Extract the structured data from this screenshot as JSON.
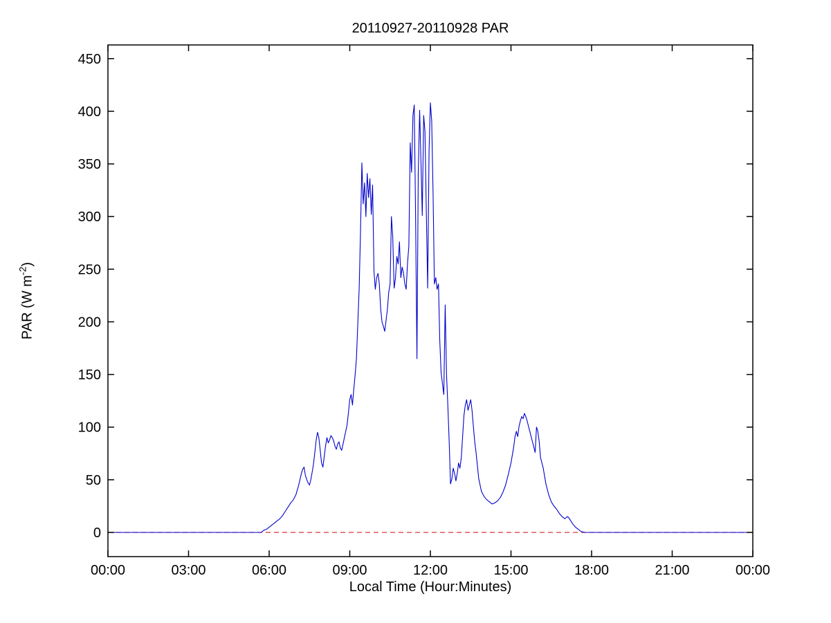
{
  "page": {
    "background": "#ffffff"
  },
  "chart_data": {
    "type": "line",
    "title": "20110927-20110928 PAR",
    "xlabel": "Local Time (Hour:Minutes)",
    "ylabel": "PAR (W m⁻²)",
    "ylabel_parts": {
      "prefix": "PAR (W m",
      "sup": "-2",
      "suffix": ")"
    },
    "xlim": [
      0,
      24
    ],
    "ylim": [
      -23,
      463
    ],
    "grid": false,
    "legend": "none",
    "axis_color": "#000000",
    "x_ticks": {
      "values": [
        0,
        3,
        6,
        9,
        12,
        15,
        18,
        21,
        24
      ],
      "labels": [
        "00:00",
        "03:00",
        "06:00",
        "09:00",
        "12:00",
        "15:00",
        "18:00",
        "21:00",
        "00:00"
      ]
    },
    "y_ticks": {
      "values": [
        0,
        50,
        100,
        150,
        200,
        250,
        300,
        350,
        400,
        450
      ],
      "labels": [
        "0",
        "50",
        "100",
        "150",
        "200",
        "250",
        "300",
        "350",
        "400",
        "450"
      ]
    },
    "series": [
      {
        "name": "PAR",
        "color": "#0000cc",
        "style": "solid",
        "points": [
          [
            0,
            0
          ],
          [
            1,
            0
          ],
          [
            2,
            0
          ],
          [
            3,
            0
          ],
          [
            4,
            0
          ],
          [
            5,
            0
          ],
          [
            5.5,
            0
          ],
          [
            5.7,
            0
          ],
          [
            5.8,
            2
          ],
          [
            5.9,
            3
          ],
          [
            6.0,
            5
          ],
          [
            6.1,
            7
          ],
          [
            6.2,
            9
          ],
          [
            6.3,
            11
          ],
          [
            6.4,
            13
          ],
          [
            6.5,
            16
          ],
          [
            6.6,
            20
          ],
          [
            6.7,
            24
          ],
          [
            6.8,
            28
          ],
          [
            6.9,
            31
          ],
          [
            7.0,
            36
          ],
          [
            7.1,
            45
          ],
          [
            7.2,
            56
          ],
          [
            7.25,
            60
          ],
          [
            7.3,
            62
          ],
          [
            7.35,
            54
          ],
          [
            7.4,
            50
          ],
          [
            7.45,
            47
          ],
          [
            7.5,
            45
          ],
          [
            7.55,
            50
          ],
          [
            7.6,
            57
          ],
          [
            7.65,
            65
          ],
          [
            7.7,
            76
          ],
          [
            7.75,
            88
          ],
          [
            7.8,
            95
          ],
          [
            7.85,
            90
          ],
          [
            7.9,
            78
          ],
          [
            7.95,
            66
          ],
          [
            8.0,
            62
          ],
          [
            8.05,
            72
          ],
          [
            8.1,
            82
          ],
          [
            8.15,
            90
          ],
          [
            8.2,
            85
          ],
          [
            8.25,
            88
          ],
          [
            8.3,
            92
          ],
          [
            8.35,
            90
          ],
          [
            8.4,
            87
          ],
          [
            8.45,
            82
          ],
          [
            8.5,
            79
          ],
          [
            8.55,
            84
          ],
          [
            8.6,
            86
          ],
          [
            8.65,
            80
          ],
          [
            8.7,
            78
          ],
          [
            8.75,
            84
          ],
          [
            8.8,
            90
          ],
          [
            8.85,
            96
          ],
          [
            8.9,
            102
          ],
          [
            8.95,
            114
          ],
          [
            9.0,
            126
          ],
          [
            9.05,
            131
          ],
          [
            9.1,
            121
          ],
          [
            9.15,
            136
          ],
          [
            9.2,
            150
          ],
          [
            9.25,
            166
          ],
          [
            9.3,
            200
          ],
          [
            9.35,
            232
          ],
          [
            9.4,
            285
          ],
          [
            9.45,
            351
          ],
          [
            9.5,
            312
          ],
          [
            9.55,
            332
          ],
          [
            9.6,
            300
          ],
          [
            9.65,
            341
          ],
          [
            9.7,
            318
          ],
          [
            9.75,
            336
          ],
          [
            9.8,
            302
          ],
          [
            9.85,
            330
          ],
          [
            9.9,
            248
          ],
          [
            9.95,
            231
          ],
          [
            10.0,
            242
          ],
          [
            10.05,
            246
          ],
          [
            10.1,
            236
          ],
          [
            10.15,
            212
          ],
          [
            10.2,
            200
          ],
          [
            10.25,
            196
          ],
          [
            10.3,
            191
          ],
          [
            10.35,
            201
          ],
          [
            10.4,
            212
          ],
          [
            10.45,
            228
          ],
          [
            10.5,
            236
          ],
          [
            10.55,
            300
          ],
          [
            10.6,
            281
          ],
          [
            10.65,
            232
          ],
          [
            10.7,
            241
          ],
          [
            10.75,
            262
          ],
          [
            10.8,
            255
          ],
          [
            10.85,
            276
          ],
          [
            10.9,
            242
          ],
          [
            10.95,
            252
          ],
          [
            11.0,
            246
          ],
          [
            11.05,
            236
          ],
          [
            11.1,
            231
          ],
          [
            11.15,
            256
          ],
          [
            11.2,
            272
          ],
          [
            11.25,
            370
          ],
          [
            11.3,
            342
          ],
          [
            11.35,
            396
          ],
          [
            11.4,
            406
          ],
          [
            11.45,
            302
          ],
          [
            11.5,
            165
          ],
          [
            11.55,
            342
          ],
          [
            11.6,
            401
          ],
          [
            11.65,
            352
          ],
          [
            11.7,
            301
          ],
          [
            11.75,
            396
          ],
          [
            11.8,
            381
          ],
          [
            11.85,
            302
          ],
          [
            11.9,
            232
          ],
          [
            11.95,
            362
          ],
          [
            12.0,
            408
          ],
          [
            12.05,
            391
          ],
          [
            12.1,
            322
          ],
          [
            12.15,
            236
          ],
          [
            12.2,
            242
          ],
          [
            12.25,
            231
          ],
          [
            12.3,
            236
          ],
          [
            12.35,
            182
          ],
          [
            12.4,
            152
          ],
          [
            12.45,
            141
          ],
          [
            12.5,
            131
          ],
          [
            12.55,
            216
          ],
          [
            12.6,
            151
          ],
          [
            12.65,
            121
          ],
          [
            12.7,
            86
          ],
          [
            12.75,
            46
          ],
          [
            12.8,
            51
          ],
          [
            12.85,
            61
          ],
          [
            12.9,
            56
          ],
          [
            12.95,
            49
          ],
          [
            13.0,
            56
          ],
          [
            13.05,
            66
          ],
          [
            13.1,
            61
          ],
          [
            13.15,
            71
          ],
          [
            13.2,
            91
          ],
          [
            13.25,
            111
          ],
          [
            13.3,
            121
          ],
          [
            13.35,
            126
          ],
          [
            13.4,
            116
          ],
          [
            13.45,
            121
          ],
          [
            13.5,
            126
          ],
          [
            13.55,
            116
          ],
          [
            13.6,
            101
          ],
          [
            13.65,
            86
          ],
          [
            13.7,
            76
          ],
          [
            13.8,
            51
          ],
          [
            13.9,
            39
          ],
          [
            14.0,
            34
          ],
          [
            14.1,
            31
          ],
          [
            14.2,
            29
          ],
          [
            14.3,
            27
          ],
          [
            14.4,
            28
          ],
          [
            14.5,
            30
          ],
          [
            14.6,
            33
          ],
          [
            14.7,
            38
          ],
          [
            14.8,
            45
          ],
          [
            14.9,
            55
          ],
          [
            15.0,
            66
          ],
          [
            15.1,
            81
          ],
          [
            15.15,
            91
          ],
          [
            15.2,
            96
          ],
          [
            15.25,
            91
          ],
          [
            15.3,
            101
          ],
          [
            15.35,
            106
          ],
          [
            15.4,
            110
          ],
          [
            15.45,
            108
          ],
          [
            15.5,
            113
          ],
          [
            15.55,
            110
          ],
          [
            15.6,
            106
          ],
          [
            15.65,
            101
          ],
          [
            15.7,
            96
          ],
          [
            15.75,
            91
          ],
          [
            15.8,
            86
          ],
          [
            15.85,
            81
          ],
          [
            15.9,
            76
          ],
          [
            15.95,
            100
          ],
          [
            16.0,
            96
          ],
          [
            16.05,
            86
          ],
          [
            16.1,
            71
          ],
          [
            16.15,
            66
          ],
          [
            16.2,
            61
          ],
          [
            16.3,
            46
          ],
          [
            16.4,
            36
          ],
          [
            16.5,
            29
          ],
          [
            16.6,
            25
          ],
          [
            16.7,
            22
          ],
          [
            16.8,
            18
          ],
          [
            16.9,
            15
          ],
          [
            17.0,
            13
          ],
          [
            17.1,
            15
          ],
          [
            17.15,
            14
          ],
          [
            17.2,
            12
          ],
          [
            17.3,
            8
          ],
          [
            17.4,
            5
          ],
          [
            17.5,
            3
          ],
          [
            17.6,
            1
          ],
          [
            17.75,
            0
          ],
          [
            18.0,
            0
          ],
          [
            19.0,
            0
          ],
          [
            20.0,
            0
          ],
          [
            21.0,
            0
          ],
          [
            22.0,
            0
          ],
          [
            23.0,
            0
          ],
          [
            24.0,
            0
          ]
        ]
      }
    ],
    "annotations": [
      {
        "type": "hline",
        "y": 0,
        "color": "#dd3333",
        "style": "dashed"
      }
    ]
  }
}
